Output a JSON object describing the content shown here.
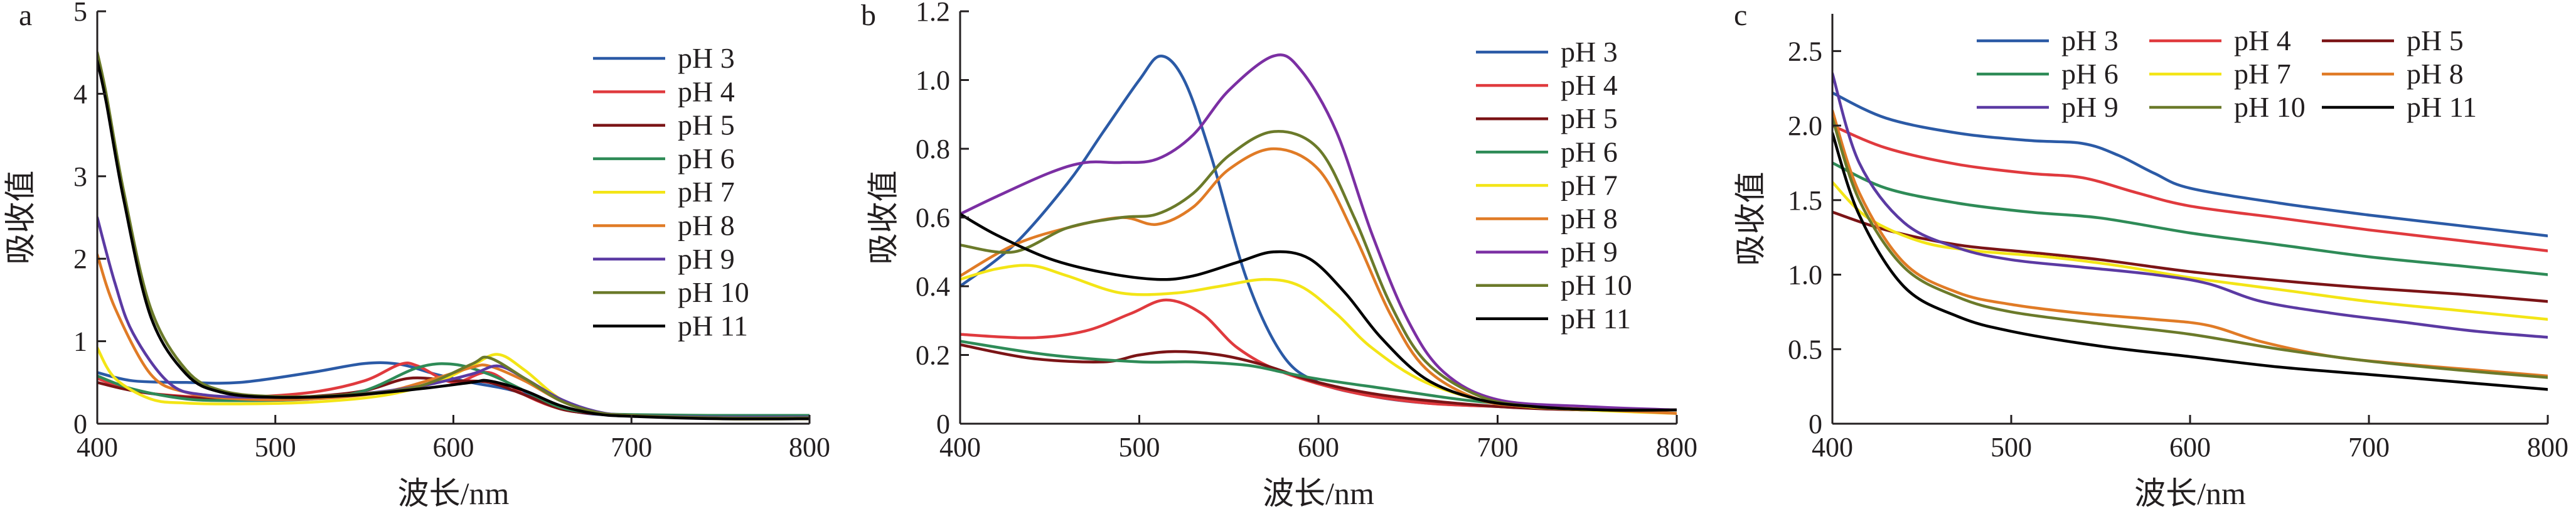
{
  "chart_data": [
    {
      "type": "line",
      "panel_label": "a",
      "xlabel": "波长/nm",
      "ylabel": "吸收值",
      "xlim": [
        400,
        800
      ],
      "ylim": [
        0,
        5
      ],
      "xticks": [
        400,
        500,
        600,
        700,
        800
      ],
      "yticks": [
        0,
        1,
        2,
        3,
        4,
        5
      ],
      "grid": false,
      "legend_position": "right",
      "series": [
        {
          "name": "pH 3",
          "color": "#2b5aa6",
          "x": [
            400,
            420,
            450,
            480,
            520,
            550,
            570,
            590,
            610,
            630,
            650,
            670,
            700,
            750,
            800
          ],
          "y": [
            0.62,
            0.52,
            0.5,
            0.5,
            0.62,
            0.73,
            0.72,
            0.6,
            0.5,
            0.42,
            0.3,
            0.14,
            0.1,
            0.1,
            0.1
          ]
        },
        {
          "name": "pH 4",
          "color": "#e03a3e",
          "x": [
            400,
            420,
            450,
            480,
            520,
            550,
            570,
            580,
            600,
            620,
            640,
            660,
            680,
            700,
            750,
            800
          ],
          "y": [
            0.55,
            0.4,
            0.33,
            0.32,
            0.38,
            0.52,
            0.72,
            0.7,
            0.5,
            0.62,
            0.35,
            0.18,
            0.12,
            0.1,
            0.09,
            0.08
          ]
        },
        {
          "name": "pH 5",
          "color": "#7b1416",
          "x": [
            400,
            420,
            450,
            480,
            520,
            550,
            575,
            600,
            620,
            640,
            660,
            680,
            700,
            750,
            800
          ],
          "y": [
            0.5,
            0.4,
            0.32,
            0.3,
            0.33,
            0.4,
            0.55,
            0.52,
            0.5,
            0.35,
            0.18,
            0.12,
            0.1,
            0.08,
            0.08
          ]
        },
        {
          "name": "pH 6",
          "color": "#2e8b57",
          "x": [
            400,
            420,
            450,
            480,
            520,
            550,
            580,
            600,
            620,
            640,
            660,
            680,
            700,
            750,
            800
          ],
          "y": [
            0.58,
            0.42,
            0.3,
            0.28,
            0.3,
            0.4,
            0.68,
            0.72,
            0.6,
            0.4,
            0.2,
            0.13,
            0.11,
            0.1,
            0.1
          ]
        },
        {
          "name": "pH 7",
          "color": "#f3e516",
          "x": [
            400,
            410,
            430,
            450,
            480,
            520,
            560,
            590,
            610,
            625,
            640,
            660,
            680,
            700,
            750,
            800
          ],
          "y": [
            0.92,
            0.55,
            0.3,
            0.25,
            0.24,
            0.26,
            0.34,
            0.5,
            0.7,
            0.84,
            0.65,
            0.3,
            0.14,
            0.1,
            0.06,
            0.06
          ]
        },
        {
          "name": "pH 8",
          "color": "#e07b26",
          "x": [
            400,
            410,
            430,
            450,
            480,
            520,
            560,
            590,
            610,
            620,
            640,
            660,
            680,
            700,
            750,
            800
          ],
          "y": [
            2.05,
            1.4,
            0.6,
            0.38,
            0.3,
            0.3,
            0.38,
            0.55,
            0.68,
            0.7,
            0.52,
            0.28,
            0.14,
            0.1,
            0.07,
            0.07
          ]
        },
        {
          "name": "pH 9",
          "color": "#5b3aa3",
          "x": [
            400,
            410,
            420,
            440,
            460,
            500,
            540,
            580,
            610,
            625,
            640,
            660,
            680,
            700,
            750,
            800
          ],
          "y": [
            2.5,
            1.7,
            1.1,
            0.5,
            0.35,
            0.32,
            0.35,
            0.45,
            0.6,
            0.7,
            0.55,
            0.3,
            0.15,
            0.1,
            0.08,
            0.08
          ]
        },
        {
          "name": "pH 10",
          "color": "#6b7a2a",
          "x": [
            400,
            405,
            415,
            430,
            450,
            470,
            500,
            540,
            580,
            610,
            620,
            640,
            660,
            680,
            700,
            750,
            800
          ],
          "y": [
            4.5,
            4.0,
            2.8,
            1.4,
            0.65,
            0.4,
            0.33,
            0.35,
            0.45,
            0.72,
            0.8,
            0.55,
            0.28,
            0.14,
            0.1,
            0.07,
            0.07
          ]
        },
        {
          "name": "pH 11",
          "color": "#000000",
          "x": [
            400,
            405,
            415,
            430,
            450,
            470,
            500,
            540,
            580,
            610,
            620,
            640,
            660,
            680,
            700,
            750,
            800
          ],
          "y": [
            4.4,
            3.9,
            2.7,
            1.3,
            0.6,
            0.38,
            0.32,
            0.34,
            0.42,
            0.5,
            0.52,
            0.4,
            0.22,
            0.12,
            0.09,
            0.06,
            0.06
          ]
        }
      ]
    },
    {
      "type": "line",
      "panel_label": "b",
      "xlabel": "波长/nm",
      "ylabel": "吸收值",
      "xlim": [
        400,
        800
      ],
      "ylim": [
        0,
        1.2
      ],
      "xticks": [
        400,
        500,
        600,
        700,
        800
      ],
      "yticks": [
        0,
        0.2,
        0.4,
        0.6,
        0.8,
        1.0,
        1.2
      ],
      "ytick_labels": [
        "0",
        "0.2",
        "0.4",
        "0.6",
        "0.8",
        "1.0",
        "1.2"
      ],
      "grid": false,
      "legend_position": "right",
      "series": [
        {
          "name": "pH 3",
          "color": "#2b5aa6",
          "x": [
            400,
            430,
            460,
            480,
            500,
            512,
            525,
            540,
            560,
            580,
            600,
            630,
            660,
            700,
            750,
            800
          ],
          "y": [
            0.4,
            0.52,
            0.7,
            0.85,
            1.0,
            1.07,
            1.0,
            0.78,
            0.42,
            0.2,
            0.12,
            0.08,
            0.06,
            0.05,
            0.04,
            0.04
          ]
        },
        {
          "name": "pH 4",
          "color": "#e03a3e",
          "x": [
            400,
            440,
            470,
            495,
            515,
            535,
            555,
            580,
            620,
            660,
            700,
            750,
            800
          ],
          "y": [
            0.26,
            0.25,
            0.27,
            0.32,
            0.36,
            0.32,
            0.22,
            0.15,
            0.09,
            0.06,
            0.05,
            0.04,
            0.04
          ]
        },
        {
          "name": "pH 5",
          "color": "#7b1416",
          "x": [
            400,
            440,
            480,
            500,
            520,
            545,
            570,
            600,
            640,
            700,
            750,
            800
          ],
          "y": [
            0.23,
            0.19,
            0.18,
            0.2,
            0.21,
            0.2,
            0.17,
            0.12,
            0.08,
            0.05,
            0.04,
            0.04
          ]
        },
        {
          "name": "pH 6",
          "color": "#2e8b57",
          "x": [
            400,
            450,
            500,
            530,
            560,
            580,
            600,
            640,
            680,
            720,
            760,
            800
          ],
          "y": [
            0.24,
            0.2,
            0.18,
            0.18,
            0.17,
            0.15,
            0.13,
            0.1,
            0.07,
            0.05,
            0.04,
            0.04
          ]
        },
        {
          "name": "pH 7",
          "color": "#f3e516",
          "x": [
            400,
            420,
            440,
            460,
            490,
            520,
            545,
            570,
            590,
            610,
            630,
            660,
            700,
            750,
            800
          ],
          "y": [
            0.42,
            0.45,
            0.46,
            0.43,
            0.38,
            0.38,
            0.4,
            0.42,
            0.4,
            0.32,
            0.22,
            0.12,
            0.06,
            0.04,
            0.03
          ]
        },
        {
          "name": "pH 8",
          "color": "#e07b26",
          "x": [
            400,
            430,
            460,
            490,
            510,
            530,
            550,
            575,
            600,
            620,
            640,
            660,
            690,
            720,
            760,
            800
          ],
          "y": [
            0.43,
            0.52,
            0.57,
            0.6,
            0.58,
            0.63,
            0.74,
            0.8,
            0.74,
            0.55,
            0.32,
            0.16,
            0.07,
            0.05,
            0.04,
            0.03
          ]
        },
        {
          "name": "pH 9",
          "color": "#7b2fa3",
          "x": [
            400,
            420,
            450,
            470,
            490,
            510,
            530,
            550,
            575,
            590,
            610,
            630,
            650,
            670,
            700,
            750,
            800
          ],
          "y": [
            0.61,
            0.66,
            0.73,
            0.76,
            0.76,
            0.77,
            0.84,
            0.97,
            1.07,
            1.03,
            0.85,
            0.55,
            0.3,
            0.15,
            0.07,
            0.05,
            0.04
          ]
        },
        {
          "name": "pH 10",
          "color": "#6b7a2a",
          "x": [
            400,
            430,
            460,
            490,
            510,
            530,
            550,
            575,
            600,
            620,
            640,
            660,
            690,
            720,
            760,
            800
          ],
          "y": [
            0.52,
            0.5,
            0.57,
            0.6,
            0.61,
            0.67,
            0.78,
            0.85,
            0.8,
            0.6,
            0.35,
            0.18,
            0.08,
            0.05,
            0.04,
            0.04
          ]
        },
        {
          "name": "pH 11",
          "color": "#000000",
          "x": [
            400,
            420,
            450,
            480,
            510,
            530,
            555,
            575,
            595,
            615,
            635,
            660,
            690,
            720,
            760,
            800
          ],
          "y": [
            0.61,
            0.55,
            0.48,
            0.44,
            0.42,
            0.43,
            0.47,
            0.5,
            0.48,
            0.38,
            0.25,
            0.13,
            0.07,
            0.05,
            0.04,
            0.04
          ]
        }
      ]
    },
    {
      "type": "line",
      "panel_label": "c",
      "xlabel": "波长/nm",
      "ylabel": "吸收值",
      "xlim": [
        400,
        800
      ],
      "ylim": [
        0,
        2.75
      ],
      "xticks": [
        400,
        500,
        600,
        700,
        800
      ],
      "yticks": [
        0,
        0.5,
        1.0,
        1.5,
        2.0,
        2.5
      ],
      "ytick_labels": [
        "0",
        "0.5",
        "1.0",
        "1.5",
        "2.0",
        "2.5"
      ],
      "grid": false,
      "legend_position": "top",
      "series": [
        {
          "name": "pH 3",
          "color": "#2b5aa6",
          "x": [
            400,
            430,
            470,
            510,
            540,
            560,
            580,
            600,
            650,
            700,
            750,
            800
          ],
          "y": [
            2.22,
            2.05,
            1.95,
            1.9,
            1.88,
            1.8,
            1.68,
            1.58,
            1.48,
            1.4,
            1.33,
            1.26
          ]
        },
        {
          "name": "pH 4",
          "color": "#e03a3e",
          "x": [
            400,
            430,
            470,
            510,
            540,
            570,
            600,
            650,
            700,
            750,
            800
          ],
          "y": [
            2.0,
            1.85,
            1.74,
            1.68,
            1.65,
            1.55,
            1.46,
            1.38,
            1.3,
            1.23,
            1.16
          ]
        },
        {
          "name": "pH 5",
          "color": "#7b1416",
          "x": [
            400,
            430,
            470,
            510,
            550,
            600,
            650,
            700,
            750,
            800
          ],
          "y": [
            1.42,
            1.3,
            1.2,
            1.15,
            1.1,
            1.02,
            0.96,
            0.91,
            0.87,
            0.82
          ]
        },
        {
          "name": "pH 6",
          "color": "#2e8b57",
          "x": [
            400,
            430,
            470,
            510,
            550,
            600,
            650,
            700,
            750,
            800
          ],
          "y": [
            1.75,
            1.58,
            1.48,
            1.42,
            1.38,
            1.28,
            1.2,
            1.12,
            1.06,
            1.0
          ]
        },
        {
          "name": "pH 7",
          "color": "#f3e516",
          "x": [
            400,
            420,
            450,
            480,
            520,
            560,
            600,
            650,
            700,
            750,
            800
          ],
          "y": [
            1.62,
            1.38,
            1.22,
            1.16,
            1.12,
            1.06,
            0.98,
            0.9,
            0.82,
            0.76,
            0.7
          ]
        },
        {
          "name": "pH 8",
          "color": "#e07b26",
          "x": [
            400,
            415,
            440,
            470,
            500,
            540,
            580,
            610,
            640,
            680,
            720,
            760,
            800
          ],
          "y": [
            2.1,
            1.55,
            1.08,
            0.88,
            0.8,
            0.74,
            0.7,
            0.66,
            0.55,
            0.45,
            0.4,
            0.36,
            0.32
          ]
        },
        {
          "name": "pH 9",
          "color": "#5b3aa3",
          "x": [
            400,
            415,
            440,
            470,
            500,
            540,
            580,
            610,
            640,
            680,
            720,
            760,
            800
          ],
          "y": [
            2.35,
            1.75,
            1.35,
            1.18,
            1.1,
            1.05,
            1.0,
            0.94,
            0.82,
            0.74,
            0.68,
            0.62,
            0.58
          ]
        },
        {
          "name": "pH 10",
          "color": "#6b7a2a",
          "x": [
            400,
            415,
            440,
            470,
            500,
            550,
            600,
            650,
            700,
            750,
            800
          ],
          "y": [
            2.05,
            1.5,
            1.05,
            0.85,
            0.75,
            0.67,
            0.6,
            0.5,
            0.42,
            0.36,
            0.31
          ]
        },
        {
          "name": "pH 11",
          "color": "#000000",
          "x": [
            400,
            415,
            440,
            470,
            500,
            550,
            600,
            650,
            700,
            750,
            800
          ],
          "y": [
            1.95,
            1.4,
            0.92,
            0.72,
            0.62,
            0.52,
            0.45,
            0.38,
            0.33,
            0.28,
            0.23
          ]
        }
      ]
    }
  ]
}
